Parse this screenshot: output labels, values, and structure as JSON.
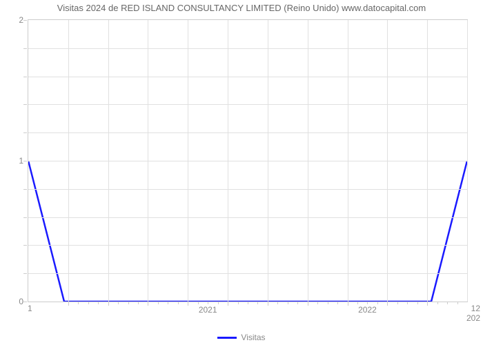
{
  "chart": {
    "type": "line",
    "title": "Visitas 2024 de RED ISLAND CONSULTANCY LIMITED (Reino Unido) www.datocapital.com",
    "title_fontsize": 13,
    "title_color": "#666666",
    "background_color": "#ffffff",
    "plot_border_color": "#cccccc",
    "grid_color": "#e0e0e0",
    "series": {
      "name": "Visitas",
      "color": "#1a1aff",
      "line_width": 2.5,
      "points_raw": [
        {
          "x": 0,
          "y": 1
        },
        {
          "x": 0.9,
          "y": 0
        },
        {
          "x": 10.1,
          "y": 0
        },
        {
          "x": 11,
          "y": 1
        }
      ]
    },
    "xaxis": {
      "min": 0,
      "max": 11,
      "major_ticks": [
        {
          "pos": 4.5,
          "label": "2021"
        },
        {
          "pos": 8.5,
          "label": "2022"
        }
      ],
      "minor_tick_count_between": 3,
      "left_end_label": "1",
      "right_end_label_top": "12",
      "right_end_label_bottom": "202",
      "tick_fontsize": 12,
      "tick_color": "#888888",
      "vgrid_positions": [
        1,
        2,
        3,
        4,
        5,
        6,
        7,
        8,
        9,
        10,
        11
      ]
    },
    "yaxis": {
      "min": 0,
      "max": 2,
      "major_ticks": [
        0,
        1,
        2
      ],
      "minor_tick_count_between": 4,
      "tick_fontsize": 12,
      "tick_color": "#888888"
    },
    "legend": {
      "position": "bottom-center",
      "label": "Visitas",
      "fontsize": 12,
      "color": "#888888"
    }
  }
}
